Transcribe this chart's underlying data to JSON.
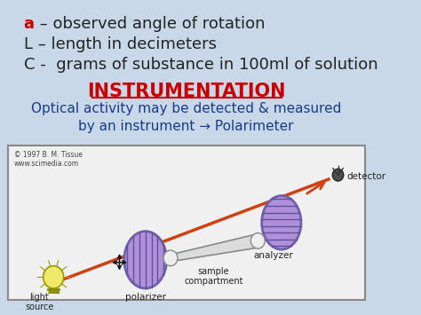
{
  "bg_color": "#c8d8e8",
  "title_text": "INSTRUMENTATION",
  "title_color": "#cc0000",
  "subtitle_line1": "Optical activity may be detected & measured",
  "subtitle_line2": "by an instrument → Polarimeter",
  "subtitle_color": "#1a3a8a",
  "line1_a": "a",
  "line1_rest": " – observed angle of rotation",
  "line2": "L – length in decimeters",
  "line3": "C -  grams of substance in 100ml of solution",
  "text_color": "#222222",
  "red_color": "#cc0000",
  "copyright_text": "© 1997 B. M. Tissue\nwww.scimedia.com",
  "arrow_color": "#d04010",
  "polarizer_face": "#b090d8",
  "polarizer_edge": "#7060a8",
  "polarizer_hatch": "#6050a0",
  "detector_label": "detector",
  "analyzer_label": "analyzer",
  "light_source_label": "light\nsource",
  "polarizer_label": "polarizer",
  "sample_label": "sample\ncompartment"
}
